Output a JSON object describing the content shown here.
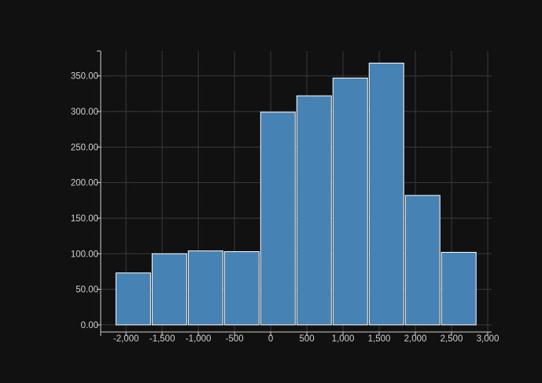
{
  "chart_data": {
    "type": "bar",
    "title": "",
    "xlabel": "",
    "ylabel": "",
    "grid": true,
    "xlim": [
      -2350,
      3000
    ],
    "ylim": [
      -10,
      385
    ],
    "x_ticks": [
      -2000,
      -1500,
      -1000,
      -500,
      0,
      500,
      1000,
      1500,
      2000,
      2500,
      3000
    ],
    "x_tick_labels": [
      "-2,000",
      "-1,500",
      "-1,000",
      "-500",
      "0",
      "500",
      "1,000",
      "1,500",
      "2,000",
      "2,500",
      "3,000"
    ],
    "y_ticks": [
      0,
      50,
      100,
      150,
      200,
      250,
      300,
      350
    ],
    "y_tick_labels": [
      "0.00",
      "50.00",
      "100.00",
      "150.00",
      "200.00",
      "250.00",
      "300.00",
      "350.00"
    ],
    "bins": [
      {
        "x0": -2150,
        "x1": -1650,
        "value": 73
      },
      {
        "x0": -1650,
        "x1": -1150,
        "value": 100
      },
      {
        "x0": -1150,
        "x1": -650,
        "value": 104
      },
      {
        "x0": -650,
        "x1": -150,
        "value": 103
      },
      {
        "x0": -150,
        "x1": 350,
        "value": 299
      },
      {
        "x0": 350,
        "x1": 850,
        "value": 322
      },
      {
        "x0": 850,
        "x1": 1350,
        "value": 347
      },
      {
        "x0": 1350,
        "x1": 1850,
        "value": 368
      },
      {
        "x0": 1850,
        "x1": 2350,
        "value": 182
      },
      {
        "x0": 2350,
        "x1": 2850,
        "value": 102
      }
    ],
    "colors": {
      "bar_fill": "#4682b4",
      "bar_stroke": "#ffffff",
      "background": "#111111",
      "grid": "#3a3a3a",
      "axis": "#d0d0d0",
      "text": "#cfcfcf"
    }
  }
}
